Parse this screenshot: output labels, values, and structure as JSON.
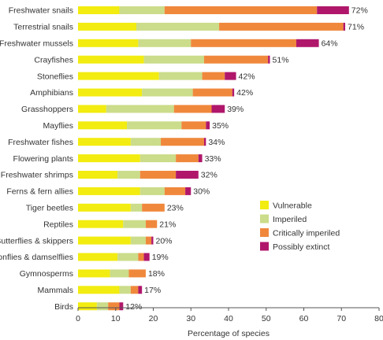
{
  "chart_data": {
    "type": "bar",
    "orientation": "horizontal",
    "stacked": true,
    "categories": [
      "Freshwater snails",
      "Terrestrial snails",
      "Freshwater mussels",
      "Crayfishes",
      "Stoneflies",
      "Amphibians",
      "Grasshoppers",
      "Mayflies",
      "Freshwater fishes",
      "Flowering plants",
      "Freshwater shrimps",
      "Ferns & fern allies",
      "Tiger beetles",
      "Reptiles",
      "Butterflies & skippers",
      "Dragonflies & damselflies",
      "Gymnosperms",
      "Mammals",
      "Birds"
    ],
    "series": [
      {
        "name": "Vulnerable",
        "color": "#f2ec10",
        "values": [
          11,
          15.5,
          16,
          17.5,
          21.5,
          17,
          7.5,
          13,
          14,
          16.5,
          10.5,
          16.5,
          14,
          12,
          14,
          10.5,
          8.5,
          11,
          5
        ]
      },
      {
        "name": "Imperiled",
        "color": "#cbdc8a",
        "values": [
          12,
          22,
          14,
          16,
          11.5,
          13.5,
          18,
          14.5,
          8,
          9.5,
          6,
          6.5,
          3,
          6,
          4,
          5.5,
          5,
          3,
          3
        ]
      },
      {
        "name": "Critically imperiled",
        "color": "#f0883c",
        "values": [
          40.5,
          33,
          28,
          17,
          6,
          10.5,
          10,
          6.5,
          11.5,
          6,
          9.5,
          5.5,
          6,
          3,
          1.5,
          1.5,
          4.5,
          2,
          3
        ]
      },
      {
        "name": "Possibly extinct",
        "color": "#b0176b",
        "values": [
          8.5,
          0.5,
          6,
          0.5,
          3,
          0.5,
          3.5,
          1,
          0.5,
          1,
          6,
          1.5,
          0,
          0,
          0.5,
          1.5,
          0,
          1,
          1
        ]
      }
    ],
    "totals_labels": [
      "72%",
      "71%",
      "64%",
      "51%",
      "42%",
      "42%",
      "39%",
      "35%",
      "34%",
      "33%",
      "32%",
      "30%",
      "23%",
      "21%",
      "20%",
      "19%",
      "18%",
      "17%",
      "12%"
    ],
    "xlabel": "Percentage of species",
    "xlim": [
      0,
      80
    ],
    "xticks": [
      "0",
      "10",
      "20",
      "30",
      "40",
      "50",
      "60",
      "70",
      "80"
    ],
    "grid": false,
    "legend_position": "lower-right"
  }
}
